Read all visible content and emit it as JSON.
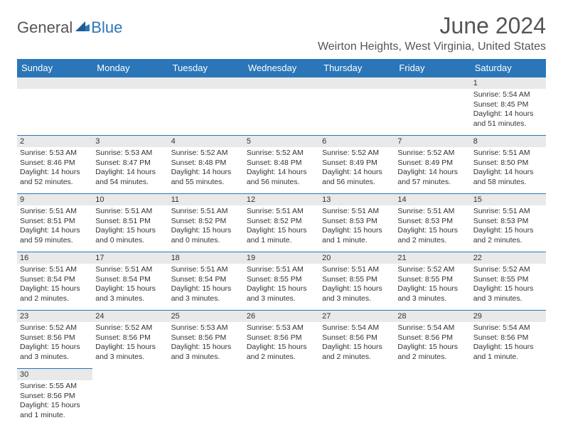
{
  "logo": {
    "part1": "General",
    "part2": "Blue",
    "mark_color": "#2a76b8"
  },
  "title": "June 2024",
  "location": "Weirton Heights, West Virginia, United States",
  "header_bg": "#2a76b8",
  "header_fg": "#ffffff",
  "cell_border": "#2a76b8",
  "daynum_bg": "#e9e9e9",
  "days_of_week": [
    "Sunday",
    "Monday",
    "Tuesday",
    "Wednesday",
    "Thursday",
    "Friday",
    "Saturday"
  ],
  "weeks": [
    [
      null,
      null,
      null,
      null,
      null,
      null,
      {
        "n": "1",
        "sr": "Sunrise: 5:54 AM",
        "ss": "Sunset: 8:45 PM",
        "d1": "Daylight: 14 hours",
        "d2": "and 51 minutes."
      }
    ],
    [
      {
        "n": "2",
        "sr": "Sunrise: 5:53 AM",
        "ss": "Sunset: 8:46 PM",
        "d1": "Daylight: 14 hours",
        "d2": "and 52 minutes."
      },
      {
        "n": "3",
        "sr": "Sunrise: 5:53 AM",
        "ss": "Sunset: 8:47 PM",
        "d1": "Daylight: 14 hours",
        "d2": "and 54 minutes."
      },
      {
        "n": "4",
        "sr": "Sunrise: 5:52 AM",
        "ss": "Sunset: 8:48 PM",
        "d1": "Daylight: 14 hours",
        "d2": "and 55 minutes."
      },
      {
        "n": "5",
        "sr": "Sunrise: 5:52 AM",
        "ss": "Sunset: 8:48 PM",
        "d1": "Daylight: 14 hours",
        "d2": "and 56 minutes."
      },
      {
        "n": "6",
        "sr": "Sunrise: 5:52 AM",
        "ss": "Sunset: 8:49 PM",
        "d1": "Daylight: 14 hours",
        "d2": "and 56 minutes."
      },
      {
        "n": "7",
        "sr": "Sunrise: 5:52 AM",
        "ss": "Sunset: 8:49 PM",
        "d1": "Daylight: 14 hours",
        "d2": "and 57 minutes."
      },
      {
        "n": "8",
        "sr": "Sunrise: 5:51 AM",
        "ss": "Sunset: 8:50 PM",
        "d1": "Daylight: 14 hours",
        "d2": "and 58 minutes."
      }
    ],
    [
      {
        "n": "9",
        "sr": "Sunrise: 5:51 AM",
        "ss": "Sunset: 8:51 PM",
        "d1": "Daylight: 14 hours",
        "d2": "and 59 minutes."
      },
      {
        "n": "10",
        "sr": "Sunrise: 5:51 AM",
        "ss": "Sunset: 8:51 PM",
        "d1": "Daylight: 15 hours",
        "d2": "and 0 minutes."
      },
      {
        "n": "11",
        "sr": "Sunrise: 5:51 AM",
        "ss": "Sunset: 8:52 PM",
        "d1": "Daylight: 15 hours",
        "d2": "and 0 minutes."
      },
      {
        "n": "12",
        "sr": "Sunrise: 5:51 AM",
        "ss": "Sunset: 8:52 PM",
        "d1": "Daylight: 15 hours",
        "d2": "and 1 minute."
      },
      {
        "n": "13",
        "sr": "Sunrise: 5:51 AM",
        "ss": "Sunset: 8:53 PM",
        "d1": "Daylight: 15 hours",
        "d2": "and 1 minute."
      },
      {
        "n": "14",
        "sr": "Sunrise: 5:51 AM",
        "ss": "Sunset: 8:53 PM",
        "d1": "Daylight: 15 hours",
        "d2": "and 2 minutes."
      },
      {
        "n": "15",
        "sr": "Sunrise: 5:51 AM",
        "ss": "Sunset: 8:53 PM",
        "d1": "Daylight: 15 hours",
        "d2": "and 2 minutes."
      }
    ],
    [
      {
        "n": "16",
        "sr": "Sunrise: 5:51 AM",
        "ss": "Sunset: 8:54 PM",
        "d1": "Daylight: 15 hours",
        "d2": "and 2 minutes."
      },
      {
        "n": "17",
        "sr": "Sunrise: 5:51 AM",
        "ss": "Sunset: 8:54 PM",
        "d1": "Daylight: 15 hours",
        "d2": "and 3 minutes."
      },
      {
        "n": "18",
        "sr": "Sunrise: 5:51 AM",
        "ss": "Sunset: 8:54 PM",
        "d1": "Daylight: 15 hours",
        "d2": "and 3 minutes."
      },
      {
        "n": "19",
        "sr": "Sunrise: 5:51 AM",
        "ss": "Sunset: 8:55 PM",
        "d1": "Daylight: 15 hours",
        "d2": "and 3 minutes."
      },
      {
        "n": "20",
        "sr": "Sunrise: 5:51 AM",
        "ss": "Sunset: 8:55 PM",
        "d1": "Daylight: 15 hours",
        "d2": "and 3 minutes."
      },
      {
        "n": "21",
        "sr": "Sunrise: 5:52 AM",
        "ss": "Sunset: 8:55 PM",
        "d1": "Daylight: 15 hours",
        "d2": "and 3 minutes."
      },
      {
        "n": "22",
        "sr": "Sunrise: 5:52 AM",
        "ss": "Sunset: 8:55 PM",
        "d1": "Daylight: 15 hours",
        "d2": "and 3 minutes."
      }
    ],
    [
      {
        "n": "23",
        "sr": "Sunrise: 5:52 AM",
        "ss": "Sunset: 8:56 PM",
        "d1": "Daylight: 15 hours",
        "d2": "and 3 minutes."
      },
      {
        "n": "24",
        "sr": "Sunrise: 5:52 AM",
        "ss": "Sunset: 8:56 PM",
        "d1": "Daylight: 15 hours",
        "d2": "and 3 minutes."
      },
      {
        "n": "25",
        "sr": "Sunrise: 5:53 AM",
        "ss": "Sunset: 8:56 PM",
        "d1": "Daylight: 15 hours",
        "d2": "and 3 minutes."
      },
      {
        "n": "26",
        "sr": "Sunrise: 5:53 AM",
        "ss": "Sunset: 8:56 PM",
        "d1": "Daylight: 15 hours",
        "d2": "and 2 minutes."
      },
      {
        "n": "27",
        "sr": "Sunrise: 5:54 AM",
        "ss": "Sunset: 8:56 PM",
        "d1": "Daylight: 15 hours",
        "d2": "and 2 minutes."
      },
      {
        "n": "28",
        "sr": "Sunrise: 5:54 AM",
        "ss": "Sunset: 8:56 PM",
        "d1": "Daylight: 15 hours",
        "d2": "and 2 minutes."
      },
      {
        "n": "29",
        "sr": "Sunrise: 5:54 AM",
        "ss": "Sunset: 8:56 PM",
        "d1": "Daylight: 15 hours",
        "d2": "and 1 minute."
      }
    ],
    [
      {
        "n": "30",
        "sr": "Sunrise: 5:55 AM",
        "ss": "Sunset: 8:56 PM",
        "d1": "Daylight: 15 hours",
        "d2": "and 1 minute."
      },
      null,
      null,
      null,
      null,
      null,
      null
    ]
  ]
}
